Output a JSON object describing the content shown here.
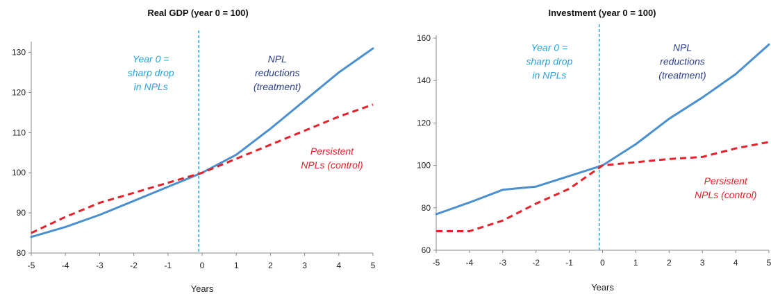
{
  "colors": {
    "treatment": "#4a90d0",
    "control": "#e8202a",
    "year0_annotation": "#2aa3dc",
    "treatment_annotation": "#2b3f8a",
    "axis": "#888888"
  },
  "chart_data": [
    {
      "type": "line",
      "title": "Real GDP (year 0 = 100)",
      "xlabel": "Years",
      "ylabel": "",
      "x": [
        -5,
        -4,
        -3,
        -2,
        -1,
        0,
        1,
        2,
        3,
        4,
        5
      ],
      "xticks": [
        -5,
        -4,
        -3,
        -2,
        -1,
        0,
        1,
        2,
        3,
        4,
        5
      ],
      "xlim": [
        -5,
        5
      ],
      "ylim": [
        80,
        132
      ],
      "yticks": [
        80,
        90,
        100,
        110,
        120,
        130
      ],
      "vline_x": -0.1,
      "grid": false,
      "series": [
        {
          "key": "treatment",
          "style": "solid",
          "values": [
            84,
            86.5,
            89.5,
            93,
            96.5,
            100,
            104.5,
            111,
            118,
            125,
            131
          ]
        },
        {
          "key": "control",
          "style": "dashed",
          "values": [
            85,
            89,
            92.5,
            95,
            97.5,
            100,
            103.5,
            107,
            110.5,
            114,
            117
          ]
        }
      ],
      "annotations": [
        {
          "key": "year0",
          "lines": [
            "Year 0 =",
            "sharp drop",
            "in NPLs"
          ],
          "color": "year0_annotation",
          "at_x": -1.5,
          "at_y": 127.5,
          "anchor": "middle"
        },
        {
          "key": "treatment",
          "lines": [
            "NPL",
            "reductions",
            "(treatment)"
          ],
          "color": "treatment_annotation",
          "at_x": 2.2,
          "at_y": 127.5,
          "anchor": "middle"
        },
        {
          "key": "control",
          "lines": [
            "Persistent",
            "NPLs (control)"
          ],
          "color": "control",
          "at_x": 3.8,
          "at_y": 104.5,
          "anchor": "middle"
        }
      ]
    },
    {
      "type": "line",
      "title": "Investment  (year 0 = 100)",
      "xlabel": "Years",
      "ylabel": "",
      "x": [
        -5,
        -4,
        -3,
        -2,
        -1,
        0,
        1,
        2,
        3,
        4,
        5
      ],
      "xticks": [
        -5,
        -4,
        -3,
        -2,
        -1,
        0,
        1,
        2,
        3,
        4,
        5
      ],
      "xlim": [
        -5,
        5
      ],
      "ylim": [
        60,
        160
      ],
      "yticks": [
        60,
        80,
        100,
        120,
        140,
        160
      ],
      "vline_x": -0.1,
      "grid": false,
      "series": [
        {
          "key": "treatment",
          "style": "solid",
          "values": [
            77,
            82.5,
            88.5,
            90,
            95,
            100,
            110,
            122,
            132,
            143,
            157
          ]
        },
        {
          "key": "control",
          "style": "dashed",
          "values": [
            69,
            69,
            74,
            82,
            89,
            100,
            101.5,
            103,
            104,
            108,
            111
          ]
        }
      ],
      "annotations": [
        {
          "key": "year0",
          "lines": [
            "Year 0 =",
            "sharp drop",
            "in NPLs"
          ],
          "color": "year0_annotation",
          "at_x": -1.6,
          "at_y": 154,
          "anchor": "middle"
        },
        {
          "key": "treatment",
          "lines": [
            "NPL",
            "reductions",
            "(treatment)"
          ],
          "color": "treatment_annotation",
          "at_x": 2.4,
          "at_y": 154,
          "anchor": "middle"
        },
        {
          "key": "control",
          "lines": [
            "Persistent",
            "NPLs (control)"
          ],
          "color": "control",
          "at_x": 3.7,
          "at_y": 91,
          "anchor": "middle"
        }
      ]
    }
  ]
}
